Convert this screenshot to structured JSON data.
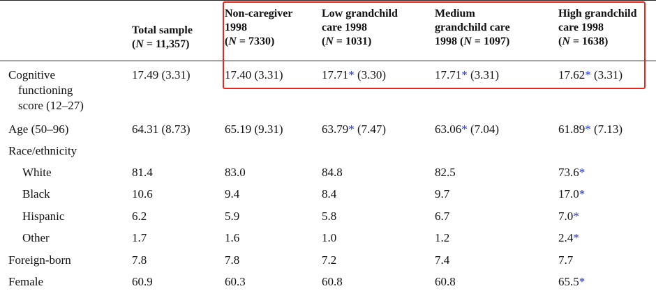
{
  "headers": [
    {
      "line1": "",
      "line2": "Total sample",
      "n": "11,357"
    },
    {
      "line1": "Non-caregiver",
      "line2": "1998",
      "n": "7330"
    },
    {
      "line1": "Low grandchild",
      "line2": "care 1998",
      "n": "1031"
    },
    {
      "line1": "Medium",
      "line2": "grandchild care",
      "line3": "1998",
      "n": "1097"
    },
    {
      "line1": "High grandchild",
      "line2": "care 1998",
      "n": "1638"
    }
  ],
  "rows": [
    {
      "label_lines": [
        "Cognitive",
        "functioning",
        "score (12–27)"
      ],
      "values": [
        {
          "v": "17.49",
          "star": "",
          "sd": " (3.31)"
        },
        {
          "v": "17.40",
          "star": "",
          "sd": " (3.31)"
        },
        {
          "v": "17.71",
          "star": "*",
          "sd": " (3.30)"
        },
        {
          "v": "17.71",
          "star": "*",
          "sd": " (3.31)"
        },
        {
          "v": "17.62",
          "star": "*",
          "sd": " (3.31)"
        }
      ]
    },
    {
      "label_lines": [
        "Age (50–96)"
      ],
      "values": [
        {
          "v": "64.31",
          "star": "",
          "sd": " (8.73)"
        },
        {
          "v": "65.19",
          "star": "",
          "sd": " (9.31)"
        },
        {
          "v": "63.79",
          "star": "*",
          "sd": " (7.47)"
        },
        {
          "v": "63.06",
          "star": "*",
          "sd": " (7.04)"
        },
        {
          "v": "61.89",
          "star": "*",
          "sd": " (7.13)"
        }
      ]
    },
    {
      "label_lines": [
        "Race/ethnicity"
      ],
      "values": []
    },
    {
      "label_lines": [
        "White"
      ],
      "values": [
        {
          "v": "81.4",
          "star": "",
          "sd": ""
        },
        {
          "v": "83.0",
          "star": "",
          "sd": ""
        },
        {
          "v": "84.8",
          "star": "",
          "sd": ""
        },
        {
          "v": "82.5",
          "star": "",
          "sd": ""
        },
        {
          "v": "73.6",
          "star": "*",
          "sd": ""
        }
      ]
    },
    {
      "label_lines": [
        "Black"
      ],
      "values": [
        {
          "v": "10.6",
          "star": "",
          "sd": ""
        },
        {
          "v": "9.4",
          "star": "",
          "sd": ""
        },
        {
          "v": "8.4",
          "star": "",
          "sd": ""
        },
        {
          "v": "9.7",
          "star": "",
          "sd": ""
        },
        {
          "v": "17.0",
          "star": "*",
          "sd": ""
        }
      ]
    },
    {
      "label_lines": [
        "Hispanic"
      ],
      "values": [
        {
          "v": "6.2",
          "star": "",
          "sd": ""
        },
        {
          "v": "5.9",
          "star": "",
          "sd": ""
        },
        {
          "v": "5.8",
          "star": "",
          "sd": ""
        },
        {
          "v": "6.7",
          "star": "",
          "sd": ""
        },
        {
          "v": "7.0",
          "star": "*",
          "sd": ""
        }
      ]
    },
    {
      "label_lines": [
        "Other"
      ],
      "values": [
        {
          "v": "1.7",
          "star": "",
          "sd": ""
        },
        {
          "v": "1.6",
          "star": "",
          "sd": ""
        },
        {
          "v": "1.0",
          "star": "",
          "sd": ""
        },
        {
          "v": "1.2",
          "star": "",
          "sd": ""
        },
        {
          "v": "2.4",
          "star": "*",
          "sd": ""
        }
      ]
    },
    {
      "label_lines": [
        "Foreign-born"
      ],
      "values": [
        {
          "v": "7.8",
          "star": "",
          "sd": ""
        },
        {
          "v": "7.8",
          "star": "",
          "sd": ""
        },
        {
          "v": "7.2",
          "star": "",
          "sd": ""
        },
        {
          "v": "7.4",
          "star": "",
          "sd": ""
        },
        {
          "v": "7.7",
          "star": "",
          "sd": ""
        }
      ]
    },
    {
      "label_lines": [
        "Female"
      ],
      "values": [
        {
          "v": "60.9",
          "star": "",
          "sd": ""
        },
        {
          "v": "60.3",
          "star": "",
          "sd": ""
        },
        {
          "v": "60.8",
          "star": "",
          "sd": ""
        },
        {
          "v": "60.8",
          "star": "",
          "sd": ""
        },
        {
          "v": "65.5",
          "star": "*",
          "sd": ""
        }
      ]
    }
  ],
  "colors": {
    "star": "#1a2fd6",
    "highlight": "#e8261d"
  }
}
